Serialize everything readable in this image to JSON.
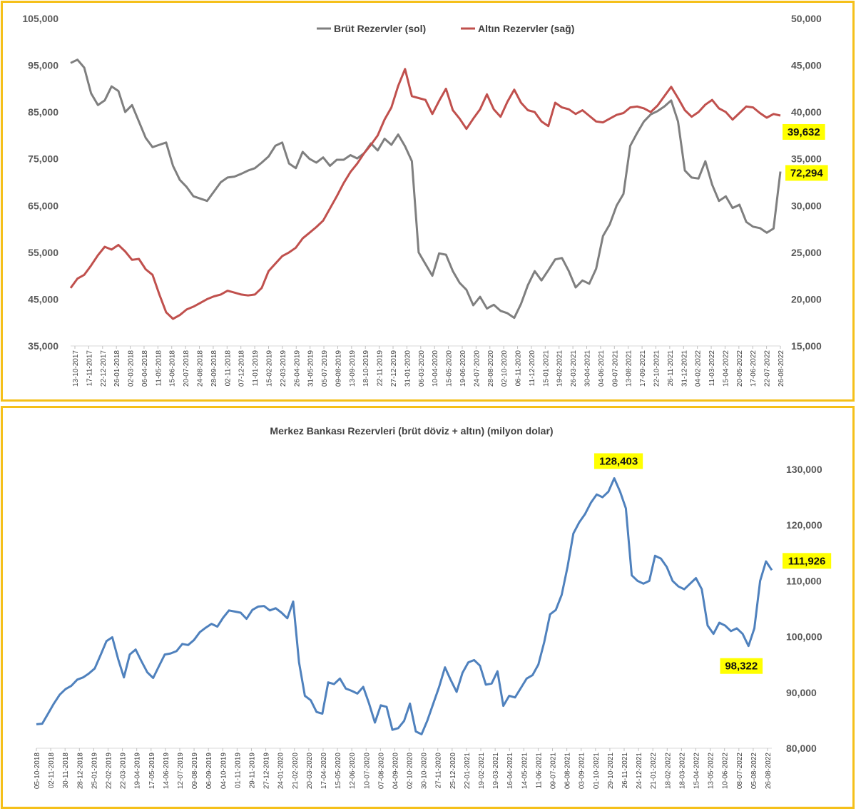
{
  "colors": {
    "frame": "#f5c01a",
    "gross": "#7f7f7f",
    "gold": "#c0504d",
    "total": "#4f81bd",
    "callout_bg": "#ffff00"
  },
  "chart_data": [
    {
      "type": "line",
      "title": "",
      "legend_position": "top",
      "y_left": {
        "lim": [
          35000,
          105000
        ],
        "ticks": [
          "105,000",
          "95,000",
          "85,000",
          "75,000",
          "65,000",
          "55,000",
          "45,000",
          "35,000"
        ]
      },
      "y_right": {
        "lim": [
          15000,
          50000
        ],
        "ticks": [
          "50,000",
          "45,000",
          "40,000",
          "35,000",
          "30,000",
          "25,000",
          "20,000",
          "15,000"
        ]
      },
      "x_ticks": [
        "13-10-2017",
        "17-11-2017",
        "22-12-2017",
        "26-01-2018",
        "02-03-2018",
        "06-04-2018",
        "11-05-2018",
        "15-06-2018",
        "20-07-2018",
        "24-08-2018",
        "28-09-2018",
        "02-11-2018",
        "07-12-2018",
        "11-01-2019",
        "15-02-2019",
        "22-03-2019",
        "26-04-2019",
        "31-05-2019",
        "05-07-2019",
        "09-08-2019",
        "13-09-2019",
        "18-10-2019",
        "22-11-2019",
        "27-12-2019",
        "31-01-2020",
        "06-03-2020",
        "10-04-2020",
        "15-05-2020",
        "19-06-2020",
        "24-07-2020",
        "28-08-2020",
        "02-10-2020",
        "06-11-2020",
        "11-12-2020",
        "15-01-2021",
        "19-02-2021",
        "26-03-2021",
        "30-04-2021",
        "04-06-2021",
        "09-07-2021",
        "13-08-2021",
        "17-09-2021",
        "22-10-2021",
        "26-11-2021",
        "31-12-2021",
        "04-02-2022",
        "11-03-2022",
        "15-04-2022",
        "20-05-2022",
        "17-06-2022",
        "22-07-2022",
        "26-08-2022"
      ],
      "series": [
        {
          "name": "Brüt Rezervler (sol)",
          "axis": "left",
          "values": [
            95500,
            96200,
            94500,
            89000,
            86500,
            87500,
            90500,
            89500,
            85000,
            86500,
            83000,
            79500,
            77500,
            78000,
            78500,
            73500,
            70500,
            69000,
            67000,
            66500,
            66000,
            68000,
            70000,
            71000,
            71200,
            71800,
            72500,
            73000,
            74200,
            75500,
            77800,
            78500,
            74000,
            73000,
            76500,
            75000,
            74200,
            75300,
            73500,
            74800,
            74800,
            75800,
            75100,
            76200,
            78300,
            76800,
            79300,
            78000,
            80200,
            77700,
            74500,
            55000,
            52500,
            50000,
            54800,
            54500,
            51000,
            48500,
            47000,
            43700,
            45500,
            43000,
            43800,
            42500,
            42000,
            41000,
            44000,
            48000,
            51000,
            49000,
            51200,
            53500,
            53800,
            51000,
            47500,
            49000,
            48300,
            51500,
            58500,
            61000,
            65000,
            67500,
            77800,
            80500,
            83000,
            84500,
            85200,
            86200,
            87500,
            83000,
            72500,
            71000,
            70800,
            74500,
            69500,
            66000,
            67000,
            64500,
            65200,
            61500,
            60500,
            60200,
            59200,
            60100,
            72294
          ],
          "last_label": "72,294"
        },
        {
          "name": "Altın Rezervler (sağ)",
          "axis": "right",
          "values": [
            21200,
            22200,
            22600,
            23600,
            24700,
            25600,
            25300,
            25800,
            25100,
            24200,
            24300,
            23200,
            22600,
            20500,
            18600,
            17900,
            18300,
            18900,
            19200,
            19600,
            20000,
            20300,
            20500,
            20900,
            20700,
            20500,
            20400,
            20500,
            21200,
            23000,
            23800,
            24600,
            25000,
            25500,
            26500,
            27100,
            27700,
            28400,
            29700,
            31000,
            32400,
            33600,
            34500,
            35600,
            36500,
            37500,
            39200,
            40500,
            42800,
            44600,
            41700,
            41500,
            41300,
            39800,
            41200,
            42500,
            40200,
            39300,
            38200,
            39300,
            40300,
            41900,
            40300,
            39500,
            41100,
            42400,
            41000,
            40200,
            40000,
            39000,
            38500,
            41000,
            40500,
            40300,
            39800,
            40200,
            39600,
            39000,
            38900,
            39300,
            39700,
            39900,
            40500,
            40600,
            40400,
            40000,
            40700,
            41700,
            42700,
            41500,
            40200,
            39500,
            40000,
            40800,
            41300,
            40400,
            40000,
            39200,
            39900,
            40600,
            40500,
            39900,
            39400,
            39800,
            39632
          ],
          "last_label": "39,632"
        }
      ]
    },
    {
      "type": "line",
      "title": "Merkez Bankası Rezervleri (brüt döviz + altın) (milyon dolar)",
      "y": {
        "lim": [
          80000,
          130000
        ],
        "ticks": [
          "130,000",
          "120,000",
          "110,000",
          "100,000",
          "90,000",
          "80,000"
        ]
      },
      "x_ticks": [
        "05-10-2018",
        "02-11-2018",
        "30-11-2018",
        "28-12-2018",
        "25-01-2019",
        "22-02-2019",
        "22-03-2019",
        "19-04-2019",
        "17-05-2019",
        "14-06-2019",
        "12-07-2019",
        "09-08-2019",
        "06-09-2019",
        "04-10-2019",
        "01-11-2019",
        "29-11-2019",
        "27-12-2019",
        "24-01-2020",
        "21-02-2020",
        "20-03-2020",
        "17-04-2020",
        "15-05-2020",
        "12-06-2020",
        "10-07-2020",
        "07-08-2020",
        "04-09-2020",
        "02-10-2020",
        "30-10-2020",
        "27-11-2020",
        "25-12-2020",
        "22-01-2021",
        "19-02-2021",
        "19-03-2021",
        "16-04-2021",
        "14-05-2021",
        "11-06-2021",
        "09-07-2021",
        "06-08-2021",
        "03-09-2021",
        "01-10-2021",
        "29-10-2021",
        "26-11-2021",
        "24-12-2021",
        "21-01-2022",
        "18-02-2022",
        "18-03-2022",
        "15-04-2022",
        "13-05-2022",
        "10-06-2022",
        "08-07-2022",
        "05-08-2022",
        "26-08-2022"
      ],
      "series": [
        {
          "name": "",
          "values": [
            84300,
            84400,
            86200,
            88000,
            89600,
            90600,
            91200,
            92300,
            92700,
            93400,
            94300,
            96700,
            99200,
            99900,
            96000,
            92700,
            96800,
            97700,
            95600,
            93600,
            92600,
            94700,
            96800,
            97000,
            97400,
            98700,
            98500,
            99400,
            100800,
            101600,
            102300,
            101800,
            103400,
            104700,
            104500,
            104300,
            103200,
            104800,
            105400,
            105500,
            104700,
            105100,
            104300,
            103300,
            106300,
            95400,
            89400,
            88600,
            86500,
            86200,
            91800,
            91500,
            92500,
            90700,
            90300,
            89800,
            91000,
            88000,
            84600,
            87700,
            87400,
            83300,
            83600,
            84900,
            88000,
            83000,
            82500,
            85000,
            88000,
            91000,
            94500,
            92200,
            90100,
            93500,
            95400,
            95800,
            94800,
            91400,
            91600,
            93800,
            87600,
            89400,
            89100,
            90800,
            92500,
            93100,
            95000,
            99000,
            104000,
            104800,
            107500,
            112500,
            118500,
            120500,
            122000,
            124000,
            125500,
            125000,
            126000,
            128403,
            126000,
            123000,
            111000,
            110000,
            109500,
            110000,
            114500,
            114000,
            112500,
            110000,
            109000,
            108500,
            109500,
            110500,
            108500,
            102000,
            100500,
            102500,
            102000,
            101000,
            101500,
            100500,
            98322,
            101500,
            110000,
            113500,
            111926
          ],
          "labels": {
            "max": "128,403",
            "min": "98,322",
            "last": "111,926"
          }
        }
      ]
    }
  ]
}
